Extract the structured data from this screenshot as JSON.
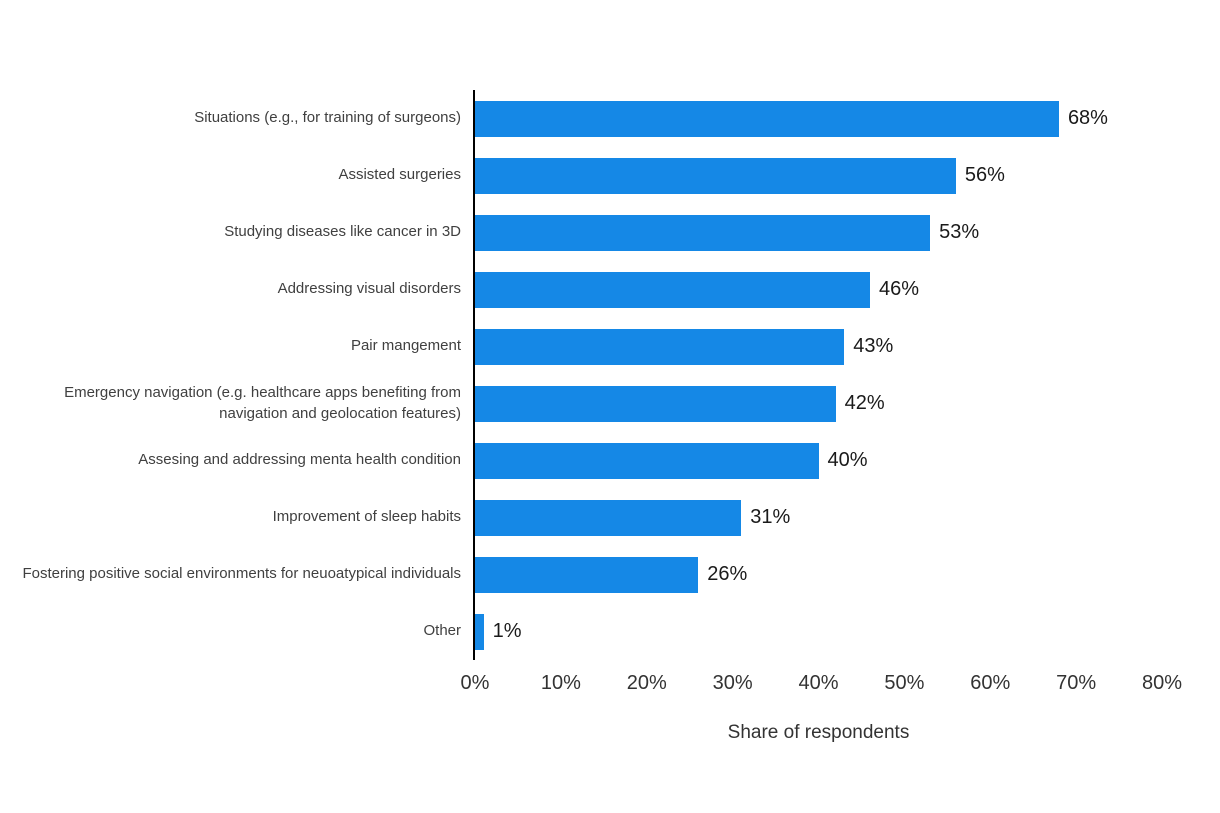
{
  "chart_data": {
    "type": "bar",
    "orientation": "horizontal",
    "title": "",
    "xlabel": "Share of respondents",
    "ylabel": "",
    "xlim": [
      0,
      80
    ],
    "grid": false,
    "legend": false,
    "bar_color": "#1588e6",
    "axis_color": "#000000",
    "categories": [
      "Situations (e.g., for training of surgeons)",
      "Assisted surgeries",
      "Studying diseases like cancer in 3D",
      "Addressing visual disorders",
      "Pair mangement",
      "Emergency navigation (e.g. healthcare apps benefiting from navigation and geolocation features)",
      "Assesing and addressing menta health condition",
      "Improvement of sleep habits",
      "Fostering positive social environments for neuoatypical individuals",
      "Other"
    ],
    "values": [
      68,
      56,
      53,
      46,
      43,
      42,
      40,
      31,
      26,
      1
    ],
    "value_labels": [
      "68%",
      "56%",
      "53%",
      "46%",
      "43%",
      "42%",
      "40%",
      "31%",
      "26%",
      "1%"
    ],
    "x_ticks": [
      "0%",
      "10%",
      "20%",
      "30%",
      "40%",
      "50%",
      "60%",
      "70%",
      "80%"
    ]
  }
}
